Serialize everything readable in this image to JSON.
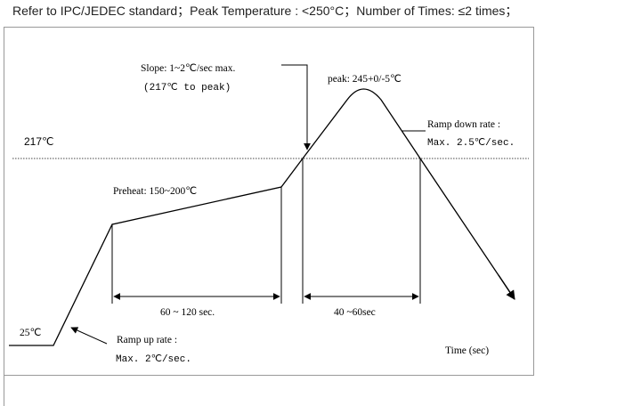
{
  "header": {
    "text": "Refer to IPC/JEDEC standard；Peak Temperature : <250°C；Number of Times: ≤2 times；"
  },
  "diagram": {
    "slope_line1": "Slope: 1~2℃/sec max.",
    "slope_line2": "(217℃ to peak)",
    "peak": "peak: 245+0/-5℃",
    "ramp_down_line1": "Ramp down rate :",
    "ramp_down_line2": "Max. 2.5℃/sec.",
    "temp_217": "217℃",
    "preheat": "Preheat: 150~200℃",
    "dur_preheat": "60 ~ 120 sec.",
    "dur_reflow": "40 ~60sec",
    "temp_25": "25℃",
    "ramp_up_line1": "Ramp up rate :",
    "ramp_up_line2": "Max. 2℃/sec.",
    "time_axis": "Time (sec)"
  }
}
